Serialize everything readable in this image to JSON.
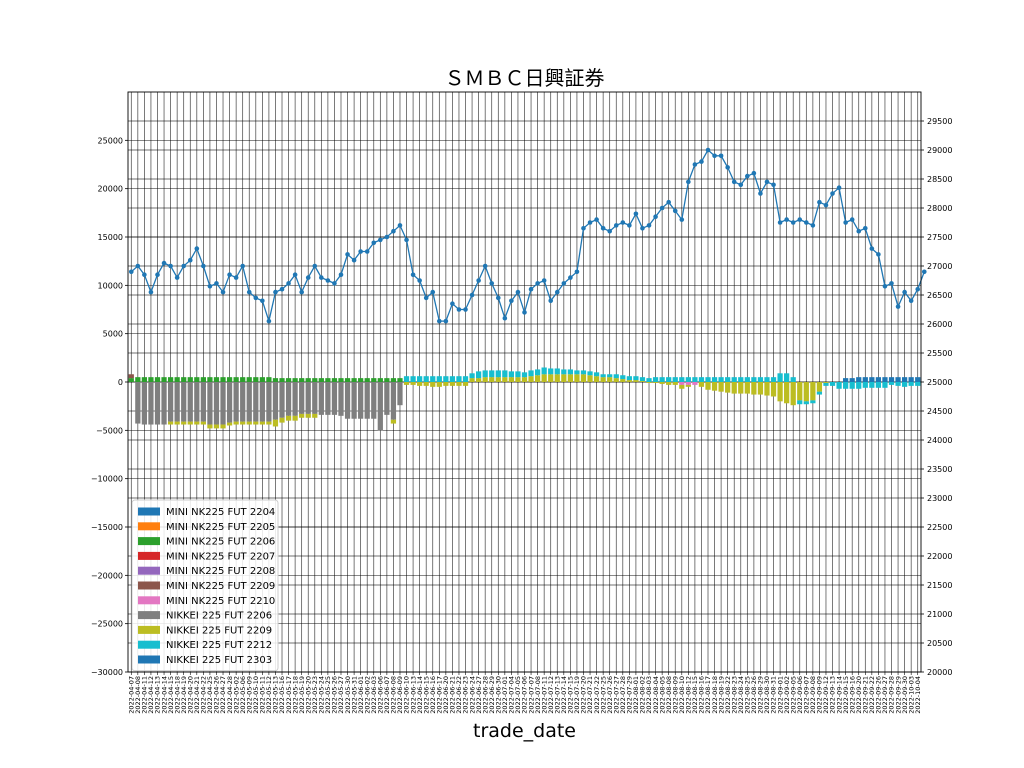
{
  "chart_data": {
    "type": "bar+line",
    "title": "ＳＭＢＣ日興証券",
    "xlabel": "trade_date",
    "ylim_left": [
      -30000,
      30000
    ],
    "ylim_right": [
      20000,
      30000
    ],
    "yticks_left": [
      -30000,
      -25000,
      -20000,
      -15000,
      -10000,
      -5000,
      0,
      5000,
      10000,
      15000,
      20000,
      25000
    ],
    "yticks_right": [
      20000,
      20500,
      21000,
      21500,
      22000,
      22500,
      23000,
      23500,
      24000,
      24500,
      25000,
      25500,
      26000,
      26500,
      27000,
      27500,
      28000,
      28500,
      29000,
      29500
    ],
    "grid": true,
    "legend_position": "lower-left",
    "colors": {
      "MINI NK225 FUT 2204": "#1f77b4",
      "MINI NK225 FUT 2205": "#ff7f0e",
      "MINI NK225 FUT 2206": "#2ca02c",
      "MINI NK225 FUT 2207": "#d62728",
      "MINI NK225 FUT 2208": "#9467bd",
      "MINI NK225 FUT 2209": "#8c564b",
      "MINI NK225 FUT 2210": "#e377c2",
      "NIKKEI 225 FUT 2206": "#7f7f7f",
      "NIKKEI 225 FUT 2209": "#bcbd22",
      "NIKKEI 225 FUT 2212": "#17becf",
      "NIKKEI 225 FUT 2303": "#1f77b4",
      "line": "#1f77b4"
    },
    "series_names": [
      "MINI NK225 FUT 2204",
      "MINI NK225 FUT 2205",
      "MINI NK225 FUT 2206",
      "MINI NK225 FUT 2207",
      "MINI NK225 FUT 2208",
      "MINI NK225 FUT 2209",
      "MINI NK225 FUT 2210",
      "NIKKEI 225 FUT 2206",
      "NIKKEI 225 FUT 2209",
      "NIKKEI 225 FUT 2212",
      "NIKKEI 225 FUT 2303"
    ],
    "x": [
      "2022-04-07",
      "2022-04-08",
      "2022-04-11",
      "2022-04-12",
      "2022-04-13",
      "2022-04-14",
      "2022-04-15",
      "2022-04-18",
      "2022-04-19",
      "2022-04-20",
      "2022-04-21",
      "2022-04-22",
      "2022-04-25",
      "2022-04-26",
      "2022-04-27",
      "2022-04-28",
      "2022-05-02",
      "2022-05-06",
      "2022-05-09",
      "2022-05-10",
      "2022-05-11",
      "2022-05-12",
      "2022-05-13",
      "2022-05-16",
      "2022-05-17",
      "2022-05-18",
      "2022-05-19",
      "2022-05-20",
      "2022-05-23",
      "2022-05-24",
      "2022-05-25",
      "2022-05-26",
      "2022-05-27",
      "2022-05-30",
      "2022-05-31",
      "2022-06-01",
      "2022-06-02",
      "2022-06-03",
      "2022-06-06",
      "2022-06-07",
      "2022-06-08",
      "2022-06-09",
      "2022-06-10",
      "2022-06-13",
      "2022-06-14",
      "2022-06-15",
      "2022-06-16",
      "2022-06-17",
      "2022-06-20",
      "2022-06-21",
      "2022-06-22",
      "2022-06-23",
      "2022-06-24",
      "2022-06-27",
      "2022-06-28",
      "2022-06-29",
      "2022-06-30",
      "2022-07-01",
      "2022-07-04",
      "2022-07-05",
      "2022-07-06",
      "2022-07-07",
      "2022-07-08",
      "2022-07-11",
      "2022-07-12",
      "2022-07-13",
      "2022-07-14",
      "2022-07-15",
      "2022-07-19",
      "2022-07-20",
      "2022-07-21",
      "2022-07-22",
      "2022-07-25",
      "2022-07-26",
      "2022-07-27",
      "2022-07-28",
      "2022-07-29",
      "2022-08-01",
      "2022-08-02",
      "2022-08-03",
      "2022-08-04",
      "2022-08-05",
      "2022-08-08",
      "2022-08-09",
      "2022-08-10",
      "2022-08-12",
      "2022-08-15",
      "2022-08-16",
      "2022-08-17",
      "2022-08-18",
      "2022-08-19",
      "2022-08-22",
      "2022-08-23",
      "2022-08-24",
      "2022-08-25",
      "2022-08-26",
      "2022-08-29",
      "2022-08-30",
      "2022-08-31",
      "2022-09-01",
      "2022-09-02",
      "2022-09-05",
      "2022-09-06",
      "2022-09-07",
      "2022-09-08",
      "2022-09-09",
      "2022-09-12",
      "2022-09-13",
      "2022-09-14",
      "2022-09-15",
      "2022-09-16",
      "2022-09-20",
      "2022-09-21",
      "2022-09-22",
      "2022-09-26",
      "2022-09-27",
      "2022-09-28",
      "2022-09-29",
      "2022-09-30",
      "2022-10-03",
      "2022-10-04"
    ],
    "line_values": [
      26900,
      27000,
      26850,
      26550,
      26850,
      27050,
      27000,
      26800,
      27000,
      27100,
      27300,
      27000,
      26650,
      26700,
      26550,
      26850,
      26800,
      27000,
      26550,
      26450,
      26400,
      26050,
      26550,
      26600,
      26700,
      26850,
      26550,
      26800,
      27000,
      26800,
      26750,
      26700,
      26850,
      27200,
      27100,
      27250,
      27250,
      27400,
      27450,
      27500,
      27600,
      27700,
      27450,
      26850,
      26750,
      26450,
      26550,
      26050,
      26050,
      26350,
      26250,
      26250,
      26500,
      26750,
      27000,
      26700,
      26450,
      26100,
      26400,
      26550,
      26200,
      26600,
      26700,
      26750,
      26400,
      26550,
      26700,
      26800,
      26900,
      27650,
      27750,
      27800,
      27650,
      27600,
      27700,
      27750,
      27700,
      27900,
      27650,
      27700,
      27850,
      28000,
      28100,
      27950,
      27800,
      28450,
      28750,
      28800,
      29000,
      28900,
      28900,
      28700,
      28450,
      28400,
      28550,
      28600,
      28250,
      28450,
      28400,
      27750,
      27800,
      27750,
      27800,
      27750,
      27700,
      28100,
      28050,
      28250,
      28350,
      27750,
      27800,
      27600,
      27650,
      27300,
      27200,
      26650,
      26700,
      26300,
      26550,
      26400,
      26600,
      26900
    ],
    "bars": {
      "MINI NK225 FUT 2206": [
        400,
        500,
        500,
        500,
        500,
        500,
        500,
        500,
        500,
        500,
        500,
        500,
        500,
        500,
        500,
        500,
        500,
        500,
        500,
        500,
        500,
        500,
        400,
        400,
        400,
        400,
        400,
        400,
        400,
        400,
        400,
        400,
        400,
        400,
        400,
        400,
        400,
        400,
        400,
        400,
        400,
        400,
        0,
        0,
        0,
        0,
        0,
        0,
        0,
        0,
        0,
        0,
        0,
        0,
        0,
        0,
        0,
        0,
        0,
        0,
        0,
        0,
        0,
        0,
        0,
        0,
        0,
        0,
        0,
        0,
        0,
        0,
        0,
        0,
        0,
        0,
        0,
        0,
        0,
        0,
        0,
        0,
        0,
        0,
        0,
        0,
        0,
        0,
        0,
        0,
        0,
        0,
        0,
        0,
        0,
        0,
        0,
        0,
        0,
        0,
        0,
        0,
        0,
        0,
        0,
        0,
        0,
        0,
        0,
        0,
        0,
        0,
        0,
        0,
        0,
        0,
        0,
        0,
        0,
        0,
        0
      ],
      "MINI NK225 FUT 2209": [
        400,
        0,
        0,
        0,
        0,
        0,
        0,
        0,
        0,
        0,
        0,
        0,
        0,
        0,
        0,
        0,
        0,
        0,
        0,
        0,
        0,
        0,
        0,
        0,
        0,
        0,
        0,
        0,
        0,
        0,
        0,
        0,
        0,
        0,
        0,
        0,
        0,
        0,
        0,
        0,
        0,
        0,
        0,
        0,
        0,
        0,
        0,
        0,
        0,
        0,
        0,
        0,
        0,
        0,
        0,
        0,
        0,
        0,
        0,
        0,
        0,
        0,
        0,
        0,
        0,
        0,
        0,
        0,
        0,
        0,
        0,
        0,
        0,
        0,
        0,
        0,
        0,
        0,
        0,
        0,
        0,
        0,
        0,
        0,
        0,
        0,
        0,
        0,
        0,
        0,
        0,
        0,
        0,
        0,
        0,
        0,
        0,
        0,
        0,
        0,
        0,
        0,
        0,
        0,
        0,
        0,
        0,
        0,
        0,
        0,
        0,
        0,
        0,
        0,
        0,
        0,
        0,
        0,
        0,
        0,
        0
      ],
      "MINI NK225 FUT 2210": [
        0,
        0,
        0,
        0,
        0,
        0,
        0,
        0,
        0,
        0,
        0,
        0,
        0,
        0,
        0,
        0,
        0,
        0,
        0,
        0,
        0,
        0,
        0,
        0,
        0,
        0,
        0,
        0,
        0,
        0,
        0,
        0,
        0,
        0,
        0,
        0,
        0,
        0,
        0,
        0,
        0,
        0,
        0,
        0,
        0,
        0,
        0,
        0,
        0,
        0,
        0,
        0,
        0,
        0,
        0,
        0,
        0,
        0,
        0,
        0,
        0,
        0,
        0,
        0,
        0,
        0,
        0,
        0,
        0,
        0,
        0,
        0,
        0,
        0,
        0,
        0,
        0,
        0,
        0,
        0,
        0,
        0,
        0,
        0,
        -300,
        -300,
        -300,
        0,
        0,
        0,
        0,
        0,
        0,
        0,
        0,
        0,
        0,
        0,
        0,
        0,
        0,
        0,
        0,
        0,
        0,
        0,
        0,
        0,
        0,
        0,
        0,
        0,
        0,
        0,
        0,
        0,
        0,
        0,
        0,
        0,
        0
      ],
      "NIKKEI 225 FUT 2206": [
        0,
        -4300,
        -4400,
        -4400,
        -4400,
        -4400,
        -4100,
        -4100,
        -4100,
        -4100,
        -4100,
        -4100,
        -4400,
        -4400,
        -4400,
        -4200,
        -4100,
        -4100,
        -4100,
        -4100,
        -4100,
        -4100,
        -3900,
        -3700,
        -3500,
        -3500,
        -3300,
        -3300,
        -3300,
        -3400,
        -3400,
        -3400,
        -3500,
        -3800,
        -3800,
        -3800,
        -3800,
        -3800,
        -5000,
        -3400,
        -3900,
        -2400,
        0,
        0,
        0,
        0,
        0,
        0,
        0,
        0,
        0,
        0,
        0,
        0,
        0,
        0,
        0,
        0,
        0,
        0,
        0,
        0,
        0,
        0,
        0,
        0,
        0,
        0,
        0,
        0,
        0,
        0,
        0,
        0,
        0,
        0,
        0,
        0,
        0,
        0,
        0,
        0,
        0,
        0,
        0,
        0,
        0,
        0,
        0,
        0,
        0,
        0,
        0,
        0,
        0,
        0,
        0,
        0,
        0,
        0,
        0,
        0,
        0,
        0,
        0,
        0,
        0,
        0,
        0,
        0,
        0,
        0,
        0,
        0,
        0,
        0,
        0,
        0,
        0,
        0,
        0
      ],
      "NIKKEI 225 FUT 2209": [
        0,
        0,
        0,
        0,
        0,
        0,
        -300,
        -300,
        -300,
        -300,
        -300,
        -300,
        -400,
        -400,
        -400,
        -300,
        -300,
        -300,
        -300,
        -300,
        -300,
        -300,
        -700,
        -500,
        -500,
        -500,
        -400,
        -400,
        -400,
        0,
        0,
        0,
        0,
        0,
        0,
        0,
        0,
        0,
        0,
        0,
        -400,
        0,
        -300,
        -300,
        -400,
        -400,
        -500,
        -500,
        -400,
        -400,
        -400,
        -400,
        400,
        400,
        500,
        500,
        500,
        500,
        500,
        500,
        500,
        600,
        700,
        800,
        800,
        800,
        800,
        800,
        800,
        800,
        700,
        600,
        500,
        500,
        400,
        300,
        200,
        200,
        100,
        -100,
        -100,
        -200,
        -300,
        -300,
        -400,
        -200,
        0,
        -500,
        -800,
        -900,
        -1000,
        -1100,
        -1200,
        -1200,
        -1200,
        -1300,
        -1300,
        -1400,
        -1500,
        -2000,
        -2200,
        -2400,
        -1900,
        -2000,
        -1900,
        -1000,
        -100,
        0,
        0,
        0,
        0,
        0,
        0,
        0,
        0,
        0,
        0,
        0,
        0,
        0,
        0
      ],
      "NIKKEI 225 FUT 2212": [
        0,
        0,
        0,
        0,
        0,
        0,
        0,
        0,
        0,
        0,
        0,
        0,
        0,
        0,
        0,
        0,
        0,
        0,
        0,
        0,
        0,
        0,
        0,
        0,
        0,
        0,
        0,
        0,
        0,
        0,
        0,
        0,
        0,
        0,
        0,
        0,
        0,
        0,
        0,
        0,
        0,
        0,
        600,
        600,
        600,
        600,
        600,
        600,
        600,
        600,
        600,
        600,
        500,
        700,
        700,
        700,
        700,
        700,
        600,
        600,
        500,
        600,
        600,
        700,
        600,
        600,
        500,
        500,
        400,
        400,
        400,
        400,
        300,
        300,
        400,
        400,
        400,
        400,
        400,
        400,
        500,
        500,
        500,
        500,
        500,
        500,
        500,
        500,
        500,
        500,
        500,
        500,
        500,
        500,
        500,
        500,
        500,
        500,
        500,
        900,
        900,
        500,
        -400,
        -300,
        -300,
        -300,
        -300,
        -400,
        -700,
        -700,
        -700,
        -700,
        -600,
        -600,
        -600,
        -600,
        -300,
        -400,
        -500,
        -400,
        -400
      ],
      "NIKKEI 225 FUT 2303": [
        0,
        0,
        0,
        0,
        0,
        0,
        0,
        0,
        0,
        0,
        0,
        0,
        0,
        0,
        0,
        0,
        0,
        0,
        0,
        0,
        0,
        0,
        0,
        0,
        0,
        0,
        0,
        0,
        0,
        0,
        0,
        0,
        0,
        0,
        0,
        0,
        0,
        0,
        0,
        0,
        0,
        0,
        0,
        0,
        0,
        0,
        0,
        0,
        0,
        0,
        0,
        0,
        0,
        0,
        0,
        0,
        0,
        0,
        0,
        0,
        0,
        0,
        0,
        0,
        0,
        0,
        0,
        0,
        0,
        0,
        0,
        0,
        0,
        0,
        0,
        0,
        0,
        0,
        0,
        0,
        0,
        0,
        0,
        0,
        0,
        0,
        0,
        0,
        0,
        0,
        0,
        0,
        0,
        0,
        0,
        0,
        0,
        0,
        0,
        0,
        0,
        0,
        0,
        0,
        0,
        0,
        0,
        0,
        0,
        400,
        400,
        500,
        500,
        500,
        500,
        500,
        500,
        500,
        500,
        500,
        500
      ]
    }
  }
}
